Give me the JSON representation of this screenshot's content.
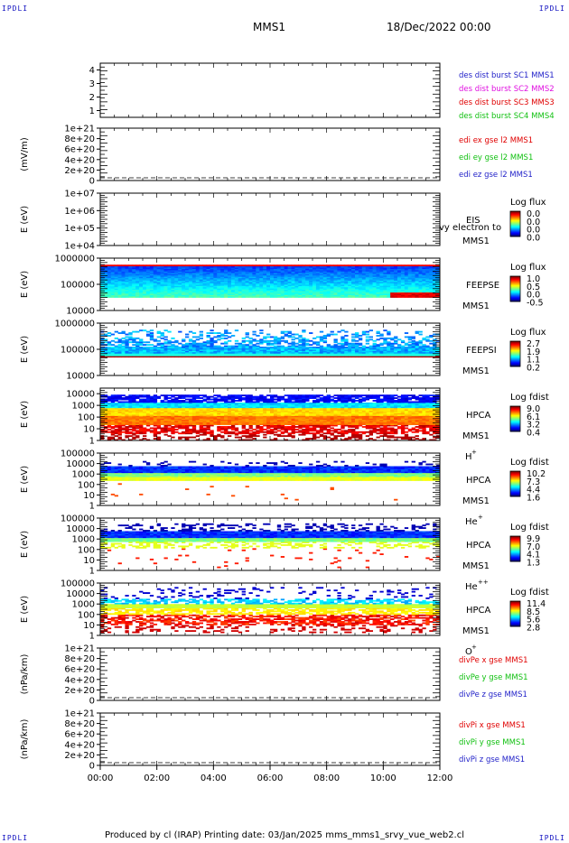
{
  "header": {
    "corner_left": "IPDLI",
    "corner_right": "IPDLI",
    "corner_bottom_left": "IPDLI",
    "corner_bottom_right": "IPDLI",
    "spacecraft": "MMS1",
    "date": "18/Dec/2022 00:00"
  },
  "footer": {
    "text": "Produced by cl (IRAP)   Printing date: 03/Jan/2025   mms_mms1_srvy_vue_web2.cl"
  },
  "colors": {
    "blue": "#1f1fc8",
    "magenta": "#e010e0",
    "red": "#e00000",
    "green": "#10c010",
    "darkred": "#c00000"
  },
  "chart_data": [
    {
      "type": "line",
      "ylabel": "",
      "yticks": [
        "1",
        "2",
        "3",
        "4"
      ],
      "ylim": [
        0.5,
        4.5
      ],
      "legend": [
        {
          "label": "des dist burst SC1 MMS1",
          "color": "#1f1fc8"
        },
        {
          "label": "des dist burst SC2 MMS2",
          "color": "#e010e0"
        },
        {
          "label": "des dist burst SC3 MMS3",
          "color": "#e00000"
        },
        {
          "label": "des dist burst SC4 MMS4",
          "color": "#10c010"
        }
      ],
      "series": []
    },
    {
      "type": "line",
      "ylabel": "(mV/m)",
      "yticks": [
        "0",
        "2e+20",
        "4e+20",
        "6e+20",
        "8e+20",
        "1e+21"
      ],
      "ylim": [
        0,
        1e+21
      ],
      "legend": [
        {
          "label": "edi ex gse l2 MMS1",
          "color": "#e00000"
        },
        {
          "label": "edi ey gse l2 MMS1",
          "color": "#10c010"
        },
        {
          "label": "edi ez gse l2 MMS1",
          "color": "#1f1fc8"
        }
      ],
      "series": []
    },
    {
      "type": "heatmap",
      "ylabel": "E (eV)",
      "yticks": [
        "1e+04",
        "1e+05",
        "1e+06",
        "1e+07"
      ],
      "yscale": "log",
      "ylim": [
        10000,
        10000000
      ],
      "instrument": [
        "EIS",
        "MMS1"
      ],
      "overlay_text": "vy electron to",
      "colorbar": {
        "title": "Log flux",
        "ticks": [
          "0.0",
          "0.0",
          "0.0",
          "0.0"
        ]
      },
      "profile": "empty"
    },
    {
      "type": "heatmap",
      "ylabel": "E (eV)",
      "yticks": [
        "10000",
        "100000",
        "1000000"
      ],
      "yscale": "log",
      "ylim": [
        10000,
        1000000
      ],
      "instrument": [
        "FEEPSE",
        "MMS1"
      ],
      "colorbar": {
        "title": "Log flux",
        "ticks": [
          "1.0",
          "0.5",
          "0.0",
          "-0.5"
        ]
      },
      "profile": "feepse"
    },
    {
      "type": "heatmap",
      "ylabel": "E (eV)",
      "yticks": [
        "10000",
        "100000",
        "1000000"
      ],
      "yscale": "log",
      "ylim": [
        10000,
        1000000
      ],
      "instrument": [
        "FEEPSI",
        "MMS1"
      ],
      "colorbar": {
        "title": "Log flux",
        "ticks": [
          "2.7",
          "1.9",
          "1.1",
          "0.2"
        ]
      },
      "profile": "feepsi"
    },
    {
      "type": "heatmap",
      "ylabel": "E (eV)",
      "yticks": [
        "1",
        "10",
        "100",
        "1000",
        "10000"
      ],
      "yscale": "log",
      "ylim": [
        1,
        30000
      ],
      "instrument": [
        "HPCA",
        "MMS1"
      ],
      "species": "H",
      "species_sup": "+",
      "colorbar": {
        "title": "Log fdist",
        "ticks": [
          "9.0",
          "6.1",
          "3.2",
          "0.4"
        ]
      },
      "profile": "hplus"
    },
    {
      "type": "heatmap",
      "ylabel": "E (eV)",
      "yticks": [
        "1",
        "10",
        "100",
        "1000",
        "10000",
        "100000"
      ],
      "yscale": "log",
      "ylim": [
        1,
        100000
      ],
      "instrument": [
        "HPCA",
        "MMS1"
      ],
      "species": "He",
      "species_sup": "+",
      "colorbar": {
        "title": "Log fdist",
        "ticks": [
          "10.2",
          "7.3",
          "4.4",
          "1.6"
        ]
      },
      "profile": "heplus"
    },
    {
      "type": "heatmap",
      "ylabel": "E (eV)",
      "yticks": [
        "1",
        "10",
        "100",
        "1000",
        "10000",
        "100000"
      ],
      "yscale": "log",
      "ylim": [
        1,
        100000
      ],
      "instrument": [
        "HPCA",
        "MMS1"
      ],
      "species": "He",
      "species_sup": "++",
      "colorbar": {
        "title": "Log fdist",
        "ticks": [
          "9.9",
          "7.0",
          "4.1",
          "1.3"
        ]
      },
      "profile": "hepp"
    },
    {
      "type": "heatmap",
      "ylabel": "E (eV)",
      "yticks": [
        "1",
        "10",
        "100",
        "1000",
        "10000",
        "100000"
      ],
      "yscale": "log",
      "ylim": [
        1,
        100000
      ],
      "instrument": [
        "HPCA",
        "MMS1"
      ],
      "species": "O",
      "species_sup": "+",
      "colorbar": {
        "title": "Log fdist",
        "ticks": [
          "11.4",
          "8.5",
          "5.6",
          "2.8"
        ]
      },
      "profile": "oplus"
    },
    {
      "type": "line",
      "ylabel": "(nPa/km)",
      "yticks": [
        "0",
        "2e+20",
        "4e+20",
        "6e+20",
        "8e+20",
        "1e+21"
      ],
      "ylim": [
        0,
        1e+21
      ],
      "legend": [
        {
          "label": "divPe x gse MMS1",
          "color": "#e00000"
        },
        {
          "label": "divPe y gse MMS1",
          "color": "#10c010"
        },
        {
          "label": "divPe z gse MMS1",
          "color": "#1f1fc8"
        }
      ],
      "series": []
    },
    {
      "type": "line",
      "ylabel": "(nPa/km)",
      "yticks": [
        "0",
        "2e+20",
        "4e+20",
        "6e+20",
        "8e+20",
        "1e+21"
      ],
      "ylim": [
        0,
        1e+21
      ],
      "legend": [
        {
          "label": "divPi x gse MMS1",
          "color": "#e00000"
        },
        {
          "label": "divPi y gse MMS1",
          "color": "#10c010"
        },
        {
          "label": "divPi z gse MMS1",
          "color": "#1f1fc8"
        }
      ],
      "series": []
    }
  ],
  "xaxis": {
    "ticks": [
      "00:00",
      "02:00",
      "04:00",
      "06:00",
      "08:00",
      "10:00",
      "12:00"
    ],
    "xlim": [
      "00:00",
      "12:00"
    ]
  }
}
